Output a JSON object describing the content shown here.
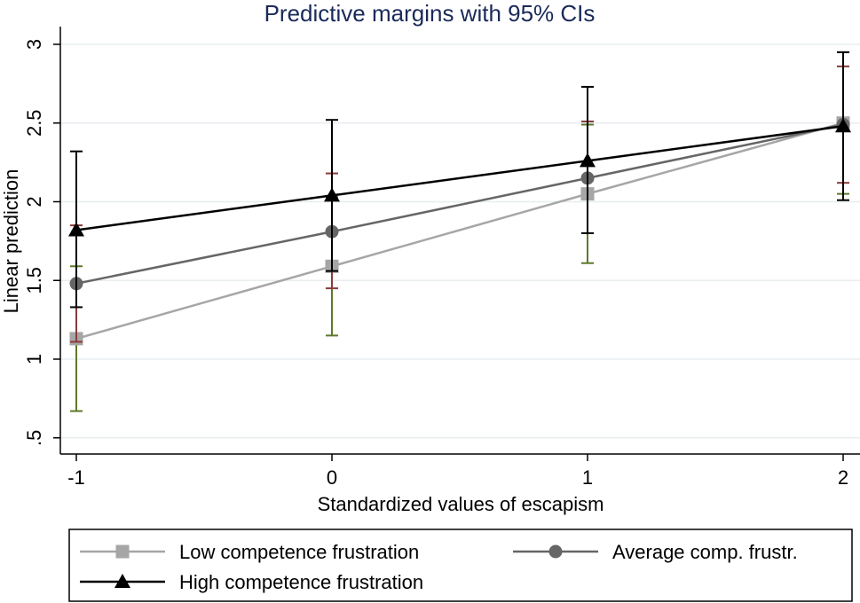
{
  "chart_data": {
    "type": "line",
    "title": "Predictive margins with 95% CIs",
    "xlabel": "Standardized values of escapism",
    "ylabel": "Linear prediction",
    "x": [
      -1,
      0,
      1,
      2
    ],
    "x_tick_labels": [
      "-1",
      "0",
      "1",
      "2"
    ],
    "ylim": [
      0.4,
      3.05
    ],
    "y_ticks": [
      0.5,
      1,
      1.5,
      2,
      2.5,
      3
    ],
    "y_tick_labels": [
      ".5",
      "1",
      "1.5",
      "2",
      "2.5",
      "3"
    ],
    "grid": true,
    "legend_position": "bottom",
    "series": [
      {
        "name": "Low competence frustration",
        "marker": "square",
        "line_color": "#a6a6a6",
        "ci_color": "#5e7a2a",
        "values": [
          1.13,
          1.59,
          2.05,
          2.5
        ],
        "ci_low": [
          0.67,
          1.15,
          1.61,
          2.05
        ],
        "ci_high": [
          1.59,
          2.03,
          2.49,
          2.95
        ]
      },
      {
        "name": "Average comp. frustr.",
        "marker": "circle",
        "line_color": "#666666",
        "ci_color": "#8b3a3a",
        "values": [
          1.48,
          1.81,
          2.15,
          2.49
        ],
        "ci_low": [
          1.11,
          1.45,
          1.8,
          2.12
        ],
        "ci_high": [
          1.85,
          2.18,
          2.51,
          2.86
        ]
      },
      {
        "name": "High competence frustration",
        "marker": "triangle",
        "line_color": "#000000",
        "ci_color": "#000000",
        "values": [
          1.82,
          2.04,
          2.26,
          2.48
        ],
        "ci_low": [
          1.33,
          1.56,
          1.8,
          2.01
        ],
        "ci_high": [
          2.32,
          2.52,
          2.73,
          2.95
        ]
      }
    ]
  }
}
